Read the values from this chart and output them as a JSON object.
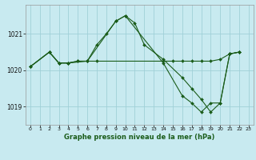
{
  "title": "Graphe pression niveau de la mer (hPa)",
  "bg_color": "#c8eaf0",
  "grid_color": "#a0d0d8",
  "line_color": "#1a5c1a",
  "xlim": [
    -0.5,
    23.5
  ],
  "ylim": [
    1018.5,
    1021.8
  ],
  "yticks": [
    1019,
    1020,
    1021
  ],
  "xticks": [
    0,
    1,
    2,
    3,
    4,
    5,
    6,
    7,
    8,
    9,
    10,
    11,
    12,
    13,
    14,
    15,
    16,
    17,
    18,
    19,
    20,
    21,
    22,
    23
  ],
  "line1_x": [
    0,
    2,
    3,
    4,
    5,
    6,
    7,
    14,
    15,
    16,
    17,
    18,
    19,
    20,
    21,
    22
  ],
  "line1_y": [
    1020.1,
    1020.5,
    1020.2,
    1020.2,
    1020.25,
    1020.25,
    1020.25,
    1020.25,
    1020.25,
    1020.25,
    1020.25,
    1020.25,
    1020.25,
    1020.3,
    1020.45,
    1020.5
  ],
  "line2_x": [
    0,
    2,
    3,
    4,
    5,
    6,
    7,
    8,
    9,
    10,
    11,
    12,
    14,
    16,
    17,
    18,
    19,
    20,
    21,
    22
  ],
  "line2_y": [
    1020.1,
    1020.5,
    1020.2,
    1020.2,
    1020.25,
    1020.25,
    1020.7,
    1021.0,
    1021.35,
    1021.5,
    1021.3,
    1020.7,
    1020.3,
    1019.8,
    1019.5,
    1019.2,
    1018.85,
    1019.1,
    1020.45,
    1020.5
  ],
  "line3_x": [
    0,
    2,
    3,
    4,
    6,
    9,
    10,
    14,
    16,
    17,
    18,
    19,
    20,
    21,
    22
  ],
  "line3_y": [
    1020.1,
    1020.5,
    1020.2,
    1020.2,
    1020.25,
    1021.35,
    1021.5,
    1020.2,
    1019.3,
    1019.1,
    1018.85,
    1019.1,
    1019.1,
    1020.45,
    1020.5
  ]
}
